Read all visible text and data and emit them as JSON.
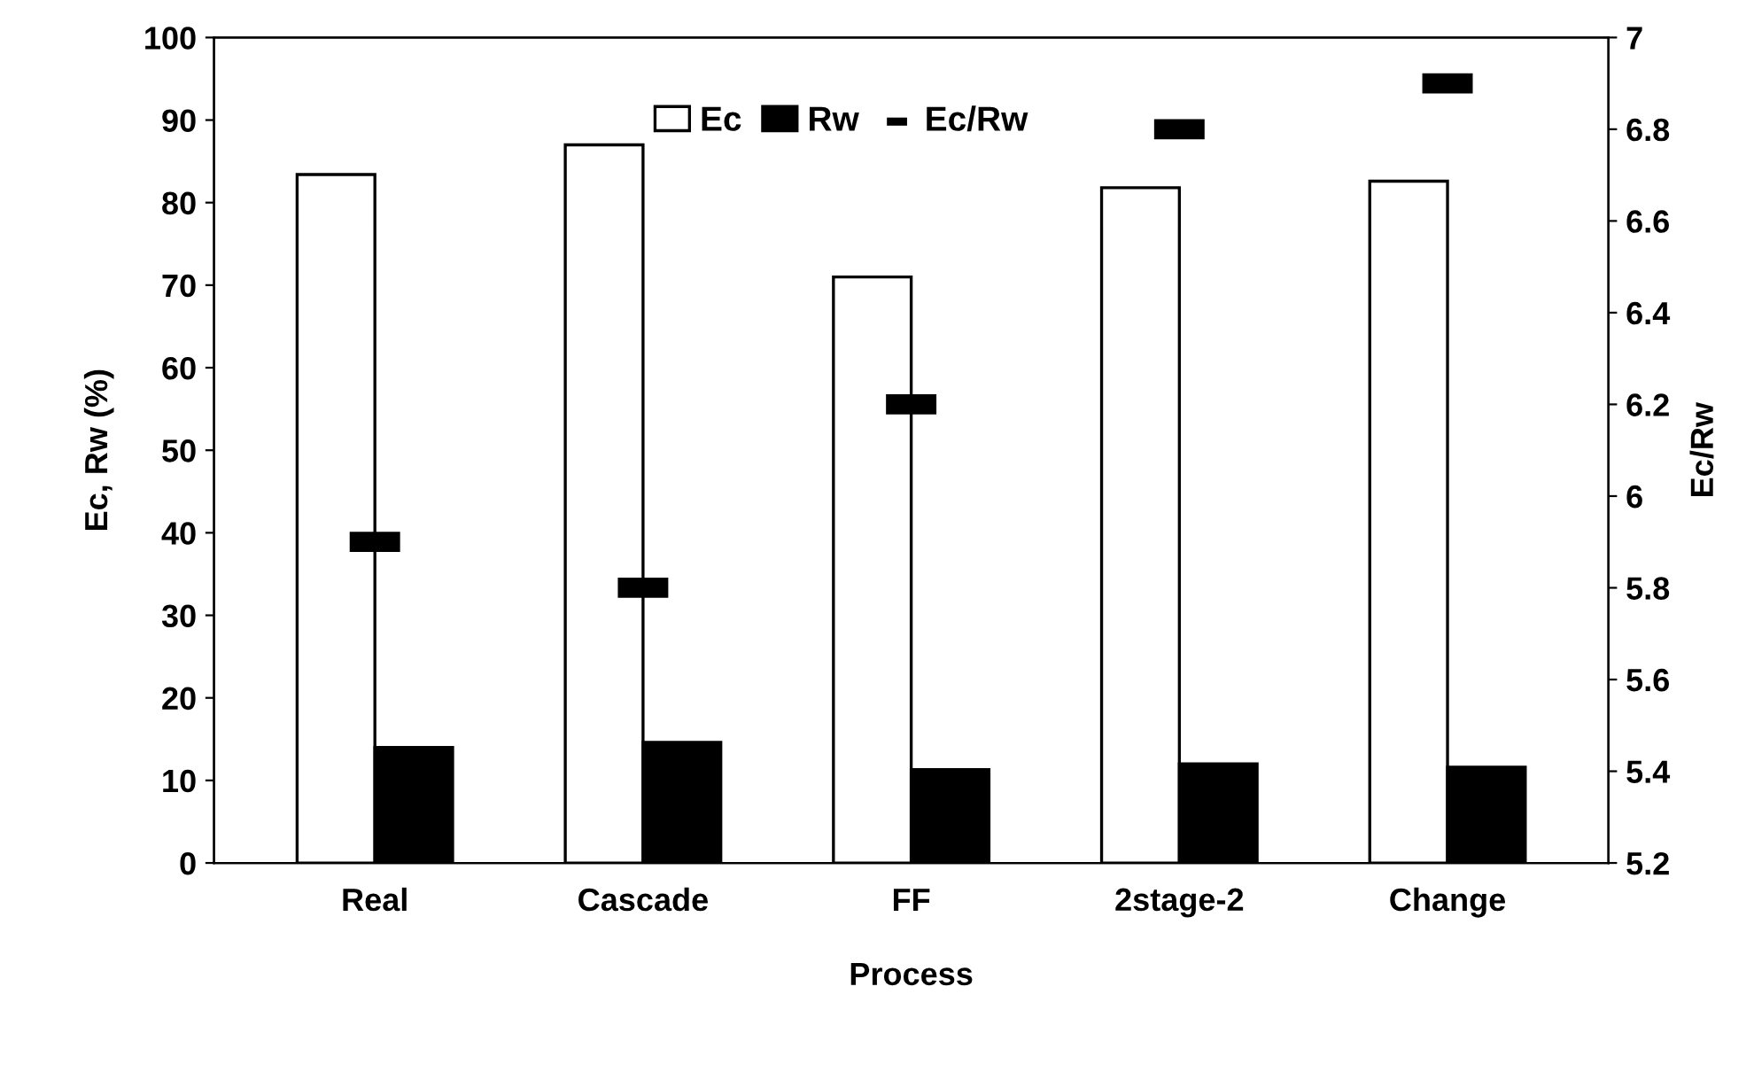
{
  "chart_data": {
    "type": "bar",
    "categories": [
      "Real",
      "Cascade",
      "FF",
      "2stage-2",
      "Change"
    ],
    "series": [
      {
        "name": "Ec",
        "color": "#ffffff",
        "values": [
          83.4,
          87.0,
          71.0,
          81.8,
          82.6
        ]
      },
      {
        "name": "Rw",
        "color": "#000000",
        "values": [
          14.0,
          14.6,
          11.3,
          12.0,
          11.6
        ]
      },
      {
        "name": "Ec/Rw",
        "type": "scatter",
        "axis": "y2",
        "color": "#000000",
        "values": [
          5.9,
          5.8,
          6.2,
          6.8,
          6.9
        ]
      }
    ],
    "xlabel": "Process",
    "ylabel": "Ec, Rw (%)",
    "y2label": "Ec/Rw",
    "ylim": [
      0,
      100
    ],
    "yticks": [
      0,
      10,
      20,
      30,
      40,
      50,
      60,
      70,
      80,
      90,
      100
    ],
    "y2lim": [
      5.2,
      7
    ],
    "y2ticks": [
      {
        "value": 5.2,
        "label": "5.2"
      },
      {
        "value": 5.4,
        "label": "5.4"
      },
      {
        "value": 5.6,
        "label": "5.6"
      },
      {
        "value": 5.8,
        "label": "5.8"
      },
      {
        "value": 6,
        "label": "6"
      },
      {
        "value": 6.2,
        "label": "6.2"
      },
      {
        "value": 6.4,
        "label": "6.4"
      },
      {
        "value": 6.6,
        "label": "6.6"
      },
      {
        "value": 6.8,
        "label": "6.8"
      },
      {
        "value": 7,
        "label": "7"
      }
    ],
    "legend": "top",
    "grid": false
  }
}
